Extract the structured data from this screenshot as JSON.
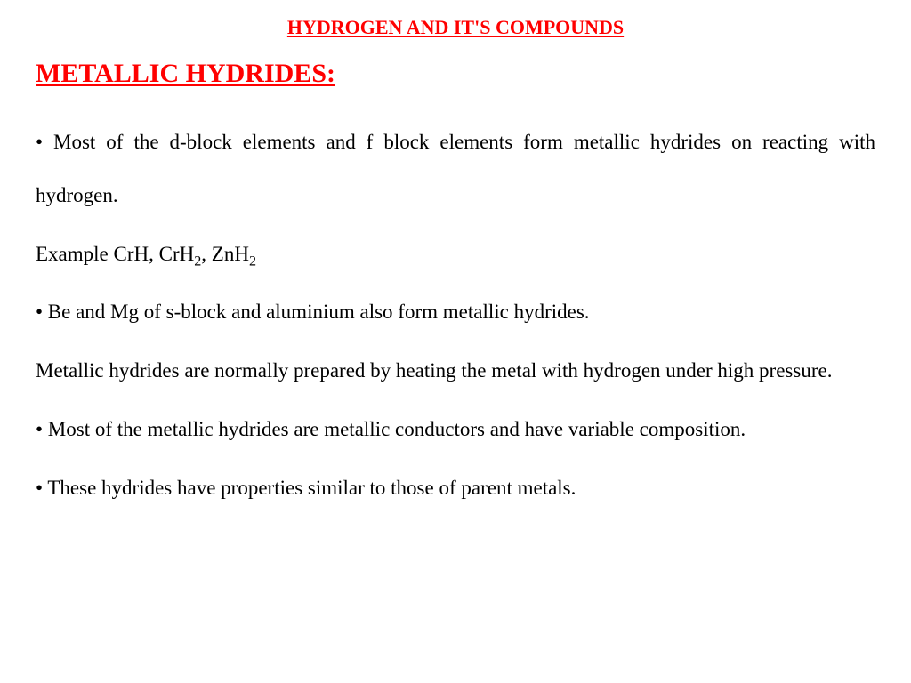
{
  "colors": {
    "heading_color": "#ff0000",
    "body_color": "#000000",
    "background": "#ffffff"
  },
  "typography": {
    "font_family": "Times New Roman",
    "title_fontsize": 22,
    "section_heading_fontsize": 30,
    "body_fontsize": 23,
    "line_height": 2.6
  },
  "title": "HYDROGEN AND IT'S COMPOUNDS",
  "section_heading": "METALLIC HYDRIDES:",
  "paragraphs": {
    "p1": "• Most of the d-block elements and f block elements form metallic hydrides on reacting with hydrogen.",
    "example_prefix": "Example  CrH, CrH",
    "example_mid": ", ZnH",
    "subscript": "2",
    "p2": " • Be and Mg of s-block and aluminium also form metallic hydrides.",
    "p3": "Metallic hydrides are normally prepared by heating the metal with hydrogen under high pressure.",
    "p4": "• Most of the metallic hydrides are metallic conductors and have variable composition.",
    "p5": "• These hydrides have properties similar to those of parent metals."
  }
}
